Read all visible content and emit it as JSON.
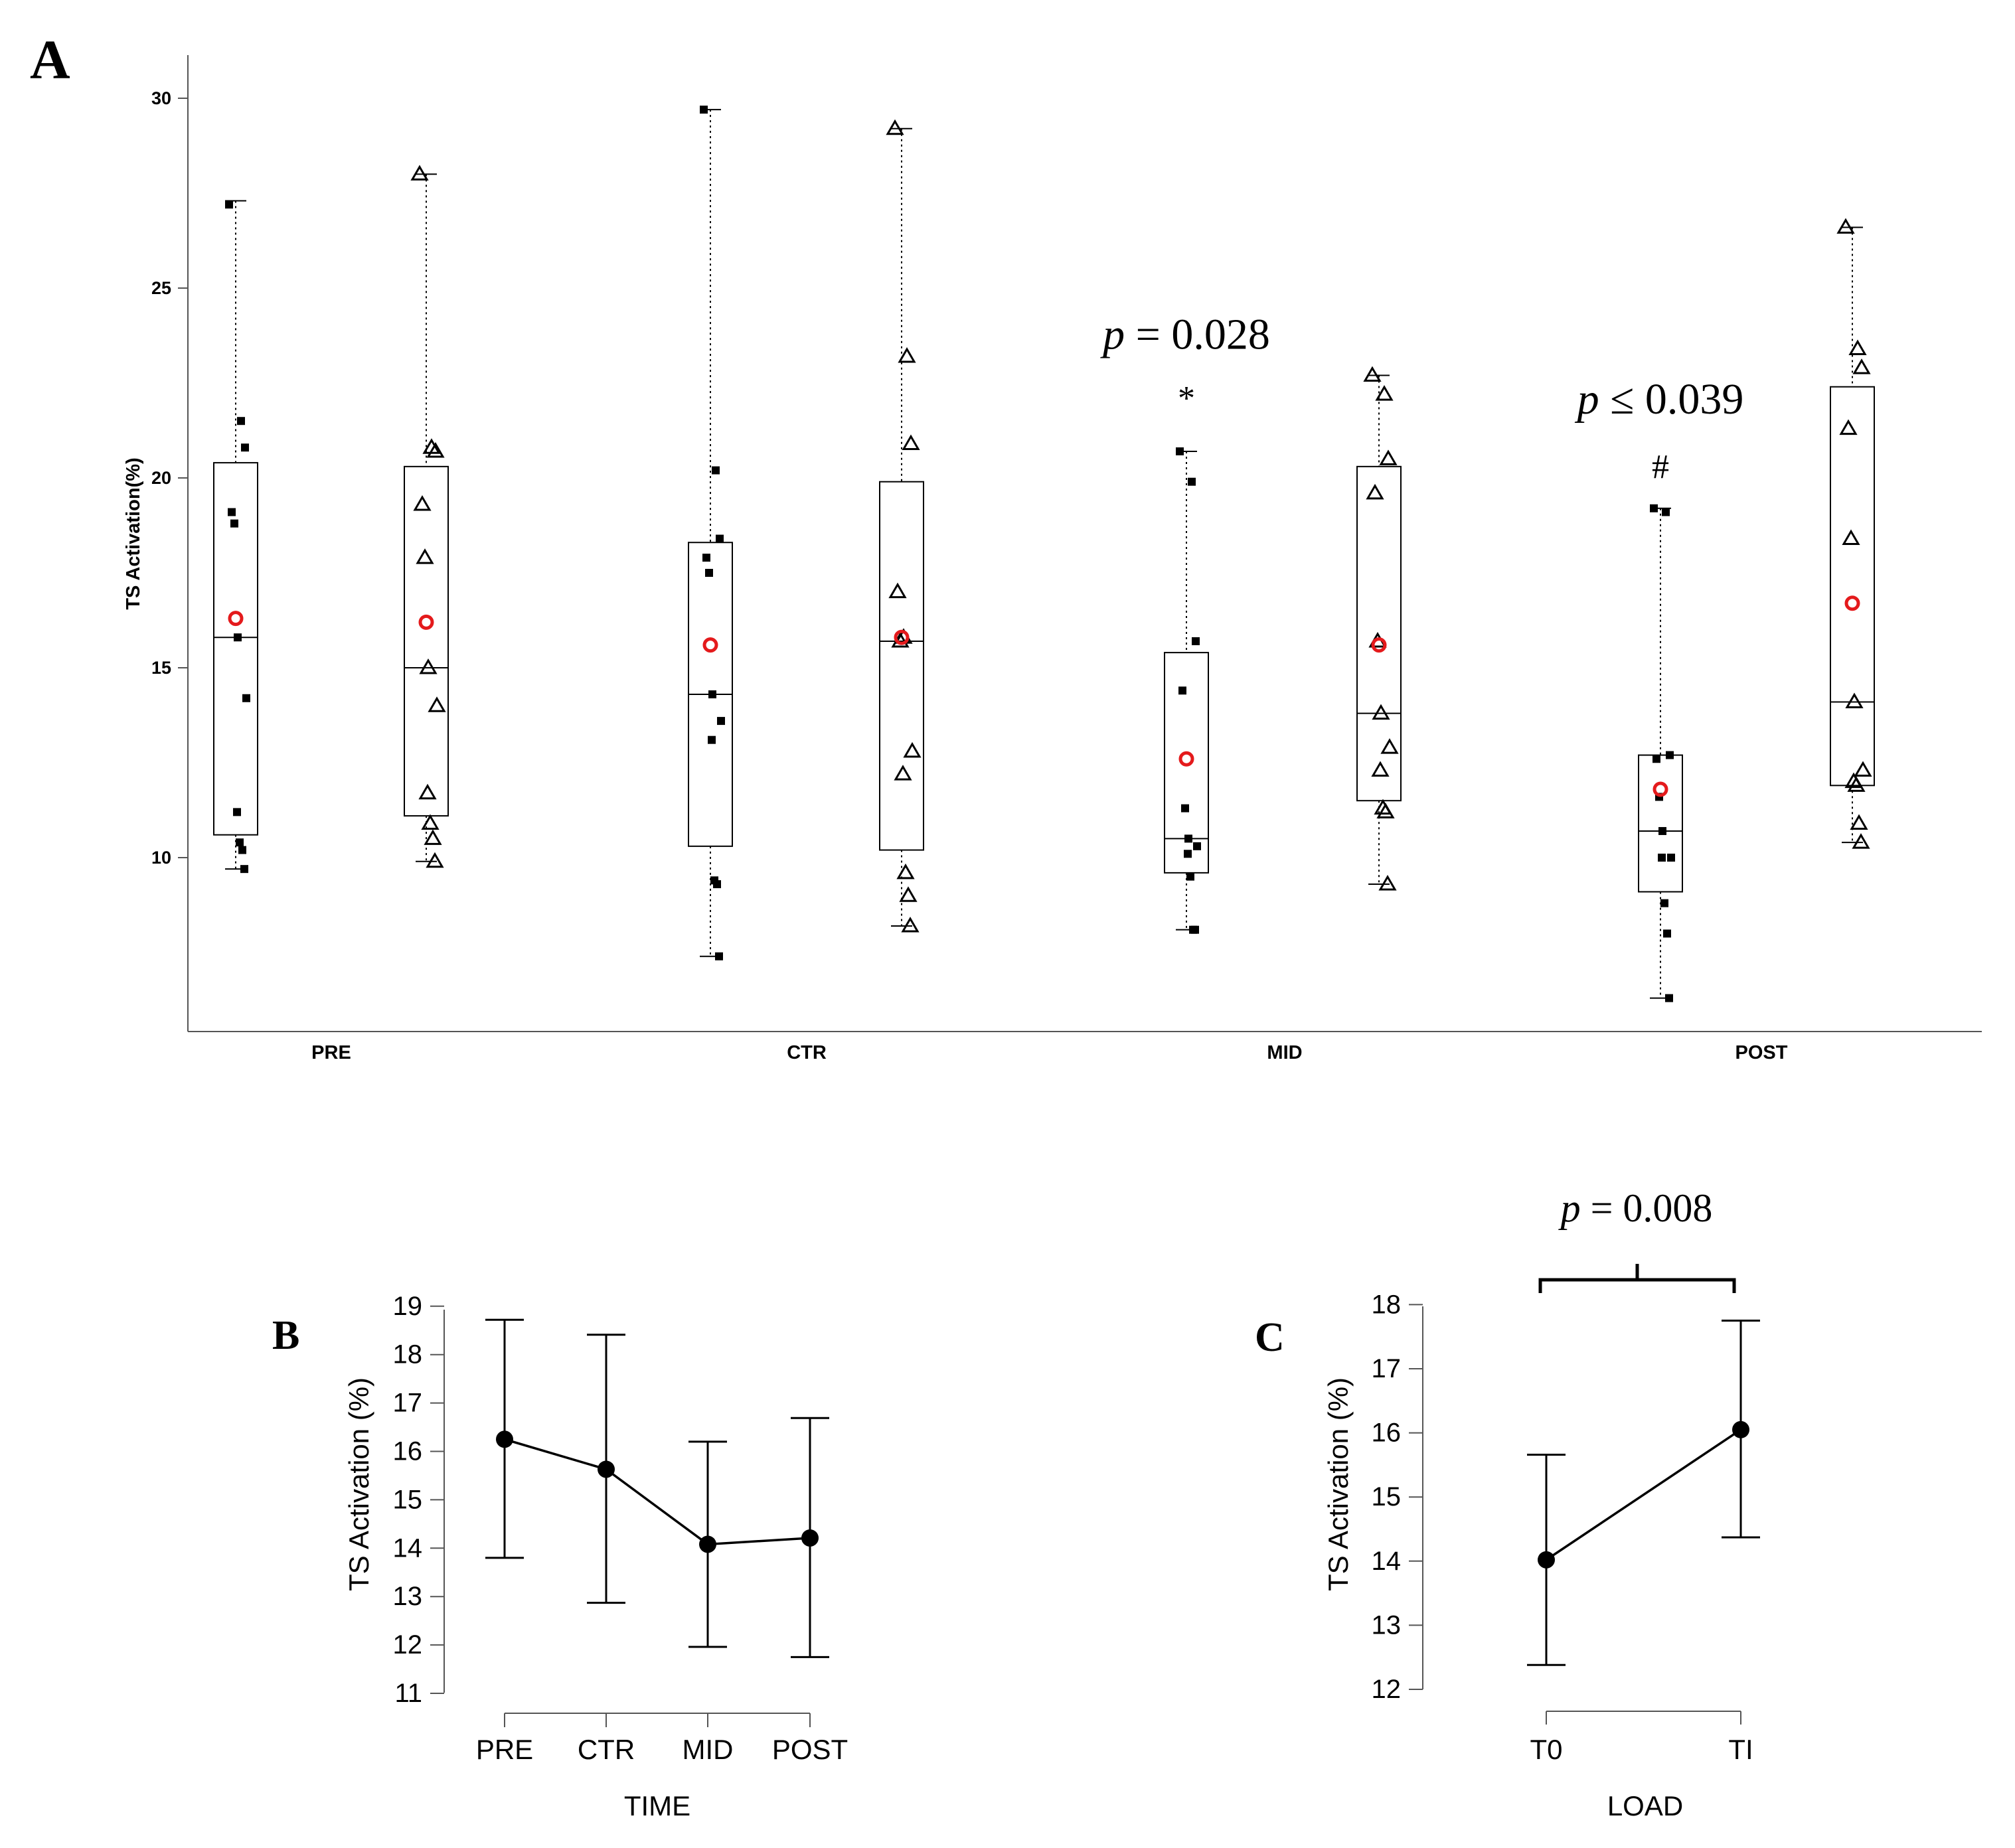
{
  "chart_data": [
    {
      "panel_label": "A",
      "type": "box-scatter",
      "ylabel": "TS Activation(%)",
      "ylim": [
        5,
        30.9
      ],
      "yticks": [
        "10",
        "15",
        "20",
        "25",
        "30"
      ],
      "categories": [
        "PRE",
        "CTR",
        "MID",
        "POST"
      ],
      "groups": [
        {
          "time": "PRE",
          "load": "T0",
          "marker": "square",
          "q1": 10.6,
          "median": 15.8,
          "q3": 20.4,
          "whisker_low": 9.7,
          "whisker_high": 27.3,
          "mean": 16.3,
          "points": [
            27.2,
            21.5,
            20.8,
            19.1,
            18.8,
            15.8,
            14.2,
            11.2,
            10.4,
            10.2,
            9.7
          ]
        },
        {
          "time": "PRE",
          "load": "TI",
          "marker": "triangle",
          "q1": 11.1,
          "median": 15.0,
          "q3": 20.3,
          "whisker_low": 9.9,
          "whisker_high": 28.0,
          "mean": 16.2,
          "points": [
            28.0,
            20.8,
            20.7,
            19.3,
            17.9,
            15.0,
            14.0,
            11.7,
            10.9,
            10.5,
            9.9
          ]
        },
        {
          "time": "CTR",
          "load": "T0",
          "marker": "square",
          "q1": 10.3,
          "median": 14.3,
          "q3": 18.3,
          "whisker_low": 7.4,
          "whisker_high": 29.7,
          "mean": 15.6,
          "points": [
            29.7,
            20.2,
            18.4,
            17.9,
            17.5,
            14.3,
            13.6,
            13.1,
            9.4,
            9.3,
            7.4
          ]
        },
        {
          "time": "CTR",
          "load": "TI",
          "marker": "triangle",
          "q1": 10.2,
          "median": 15.7,
          "q3": 19.9,
          "whisker_low": 8.2,
          "whisker_high": 29.2,
          "mean": 15.8,
          "points": [
            29.2,
            23.2,
            20.9,
            17.0,
            15.7,
            15.8,
            12.8,
            12.2,
            9.6,
            9.0,
            8.2
          ]
        },
        {
          "time": "MID",
          "load": "T0",
          "marker": "square",
          "q1": 9.6,
          "median": 10.5,
          "q3": 15.4,
          "whisker_low": 8.1,
          "whisker_high": 20.7,
          "mean": 12.6,
          "points": [
            20.7,
            19.9,
            15.7,
            14.4,
            11.3,
            10.5,
            10.3,
            10.1,
            9.5,
            8.1,
            8.1
          ]
        },
        {
          "time": "MID",
          "load": "TI",
          "marker": "triangle",
          "q1": 11.5,
          "median": 13.8,
          "q3": 20.3,
          "whisker_low": 9.3,
          "whisker_high": 22.7,
          "mean": 15.6,
          "points": [
            22.7,
            22.2,
            20.5,
            19.6,
            15.7,
            13.8,
            12.9,
            12.3,
            11.3,
            11.2,
            9.3
          ]
        },
        {
          "time": "POST",
          "load": "T0",
          "marker": "square",
          "q1": 9.1,
          "median": 10.7,
          "q3": 12.7,
          "whisker_low": 6.3,
          "whisker_high": 19.2,
          "mean": 11.8,
          "points": [
            19.2,
            19.1,
            12.7,
            12.6,
            11.6,
            10.7,
            10.0,
            10.0,
            8.8,
            8.0,
            6.3
          ]
        },
        {
          "time": "POST",
          "load": "TI",
          "marker": "triangle",
          "q1": 11.9,
          "median": 14.1,
          "q3": 22.4,
          "whisker_low": 10.4,
          "whisker_high": 26.6,
          "mean": 16.7,
          "points": [
            26.6,
            23.4,
            22.9,
            21.3,
            18.4,
            14.1,
            12.3,
            12.0,
            11.9,
            10.9,
            10.4
          ]
        }
      ],
      "annotations": [
        {
          "text_p": "p",
          "text_rest": " = 0.028",
          "symbol": "*",
          "time": "MID",
          "load": "T0",
          "p_value": 23.4,
          "symbol_value": 21.8
        },
        {
          "text_p": "p",
          "text_rest": " ≤ 0.039",
          "symbol": "#",
          "time": "POST",
          "load": "T0",
          "p_value": 21.7,
          "symbol_value": 20.0
        }
      ]
    },
    {
      "panel_label": "B",
      "type": "line",
      "xlabel": "TIME",
      "ylabel": "TS Activation (%)",
      "ylim": [
        11,
        19
      ],
      "yticks": [
        "11",
        "12",
        "13",
        "14",
        "15",
        "16",
        "17",
        "18",
        "19"
      ],
      "categories": [
        "PRE",
        "CTR",
        "MID",
        "POST"
      ],
      "values": [
        16.25,
        15.63,
        14.08,
        14.21
      ],
      "error_lower": [
        13.8,
        12.87,
        11.96,
        11.75
      ],
      "error_upper": [
        18.72,
        18.41,
        16.2,
        16.69
      ]
    },
    {
      "panel_label": "C",
      "type": "line",
      "xlabel": "LOAD",
      "ylabel": "TS Activation (%)",
      "ylim": [
        12,
        18
      ],
      "yticks": [
        "12",
        "13",
        "14",
        "15",
        "16",
        "17",
        "18"
      ],
      "categories": [
        "T0",
        "TI"
      ],
      "values": [
        14.02,
        16.05
      ],
      "error_lower": [
        12.38,
        14.37
      ],
      "error_upper": [
        15.66,
        17.75
      ],
      "annotation": {
        "text_p": "p",
        "text_rest": " = 0.008"
      }
    }
  ],
  "colors": {
    "ink": "#000000",
    "mean_marker": "#e41a1c",
    "axis_gray": "#555555"
  }
}
